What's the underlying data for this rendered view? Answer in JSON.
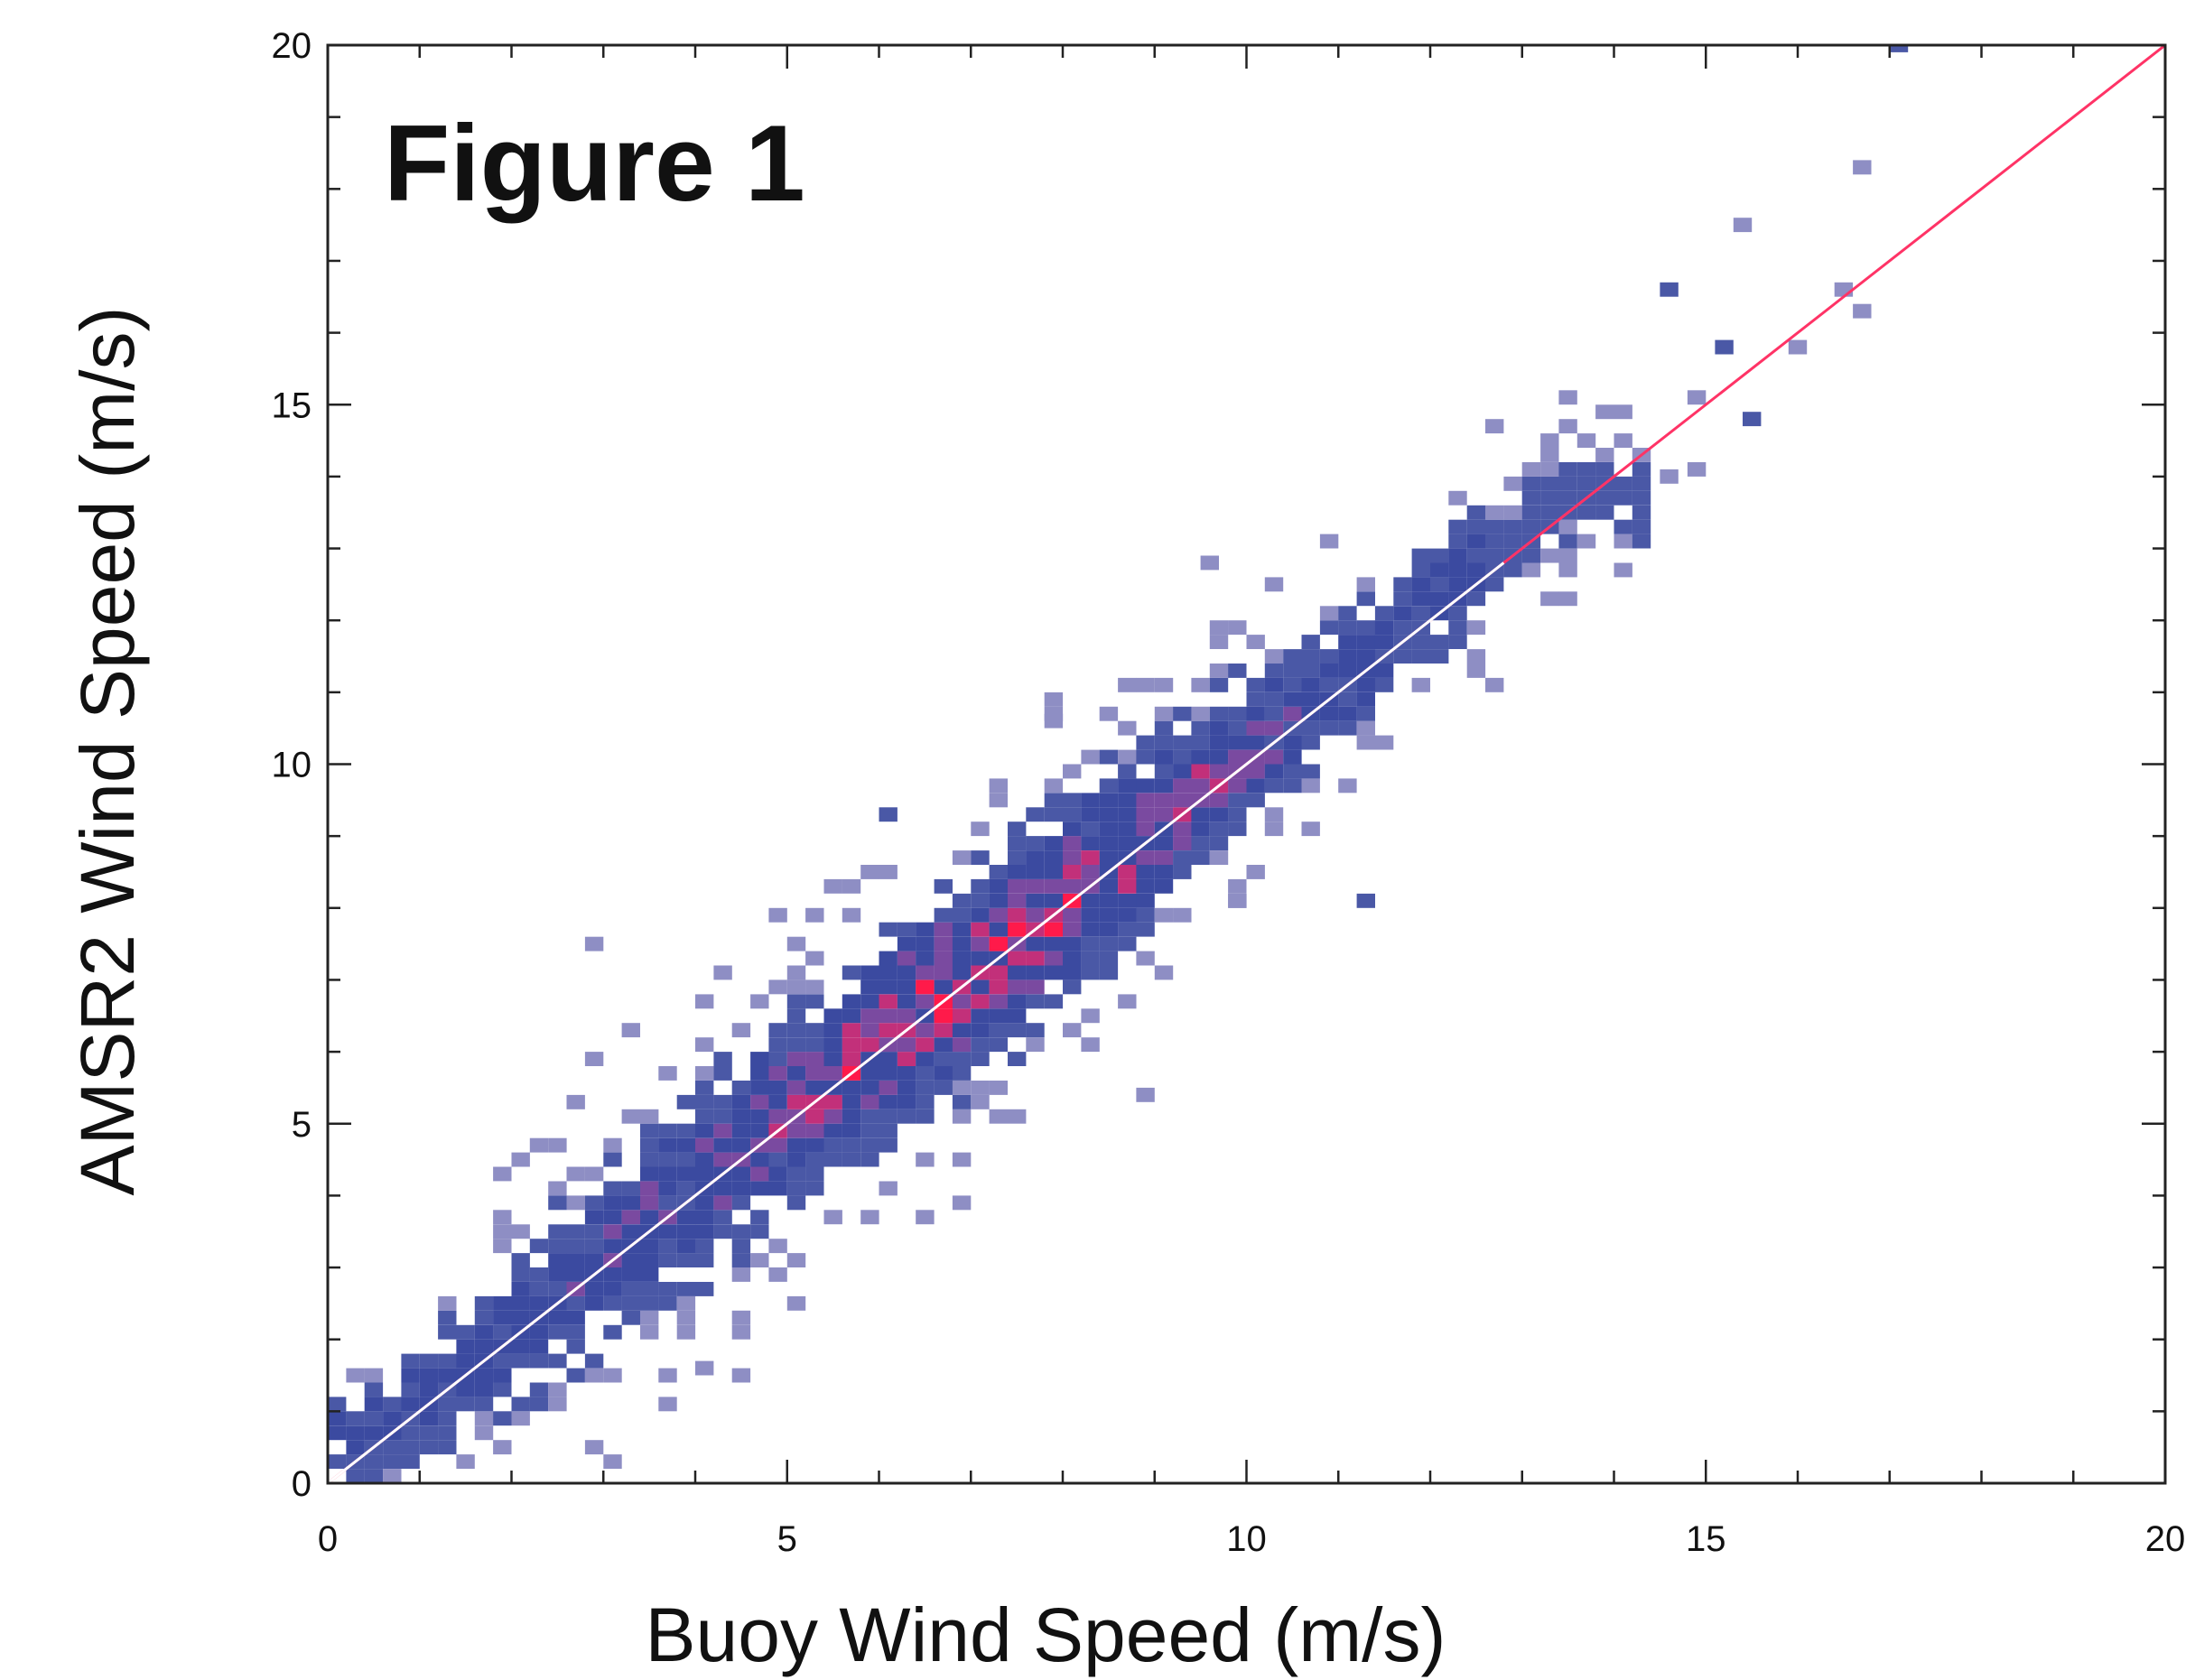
{
  "chart_data": {
    "type": "heatmap",
    "title": "Figure 1",
    "xlabel": "Buoy Wind Speed (m/s)",
    "ylabel": "AMSR2 Wind Speed (m/s)",
    "xlim": [
      0,
      20
    ],
    "ylim": [
      0,
      20
    ],
    "xticks": [
      0,
      5,
      10,
      15,
      20
    ],
    "yticks": [
      0,
      5,
      10,
      15,
      20
    ],
    "xtick_labels": [
      "0",
      "5",
      "10",
      "15",
      "20"
    ],
    "ytick_labels": [
      "0",
      "5",
      "10",
      "15",
      "20"
    ],
    "bin_size": 0.2,
    "color_scale": [
      "#8e8ec4",
      "#4a58a6",
      "#3b4aa0",
      "#7a4aa0",
      "#c2307a",
      "#ff1a4a"
    ],
    "grid": false,
    "reference_lines": [
      {
        "name": "1:1 line",
        "color": "#ff3366",
        "x": [
          0,
          20
        ],
        "y": [
          0,
          20
        ]
      },
      {
        "name": "fit",
        "color": "#ffffff",
        "x": [
          0,
          12.8
        ],
        "y": [
          0,
          12.8
        ]
      }
    ],
    "density_ridge": {
      "x": [
        0.5,
        1.5,
        2.5,
        3.5,
        4.5,
        5.5,
        6.5,
        7.5,
        8.5,
        9.5,
        10.5,
        11.5,
        12.5,
        13.5
      ],
      "y": [
        0.7,
        1.6,
        2.6,
        3.6,
        4.6,
        5.6,
        6.6,
        7.6,
        8.6,
        9.6,
        10.6,
        11.6,
        12.7,
        13.7
      ],
      "spread": [
        0.7,
        1.0,
        1.2,
        1.3,
        1.3,
        1.3,
        1.3,
        1.3,
        1.2,
        1.1,
        1.0,
        0.9,
        0.8,
        0.8
      ]
    },
    "isolated_points": [
      {
        "x": 17.0,
        "y": 19.9
      },
      {
        "x": 16.6,
        "y": 18.2
      },
      {
        "x": 15.3,
        "y": 17.4
      },
      {
        "x": 14.5,
        "y": 16.5
      },
      {
        "x": 16.4,
        "y": 16.5
      },
      {
        "x": 16.6,
        "y": 16.2
      },
      {
        "x": 15.1,
        "y": 15.7
      },
      {
        "x": 15.9,
        "y": 15.7
      },
      {
        "x": 14.8,
        "y": 15.0
      },
      {
        "x": 15.4,
        "y": 14.7
      },
      {
        "x": 14.8,
        "y": 14.0
      },
      {
        "x": 14.5,
        "y": 13.9
      },
      {
        "x": 6.0,
        "y": 9.2
      },
      {
        "x": 7.8,
        "y": 10.5
      },
      {
        "x": 9.8,
        "y": 8.0
      },
      {
        "x": 3.2,
        "y": 2.2
      },
      {
        "x": 4.0,
        "y": 1.5
      },
      {
        "x": 9.5,
        "y": 12.7
      },
      {
        "x": 11.2,
        "y": 8.0
      },
      {
        "x": 8.8,
        "y": 5.3
      },
      {
        "x": 2.8,
        "y": 7.4
      }
    ]
  }
}
